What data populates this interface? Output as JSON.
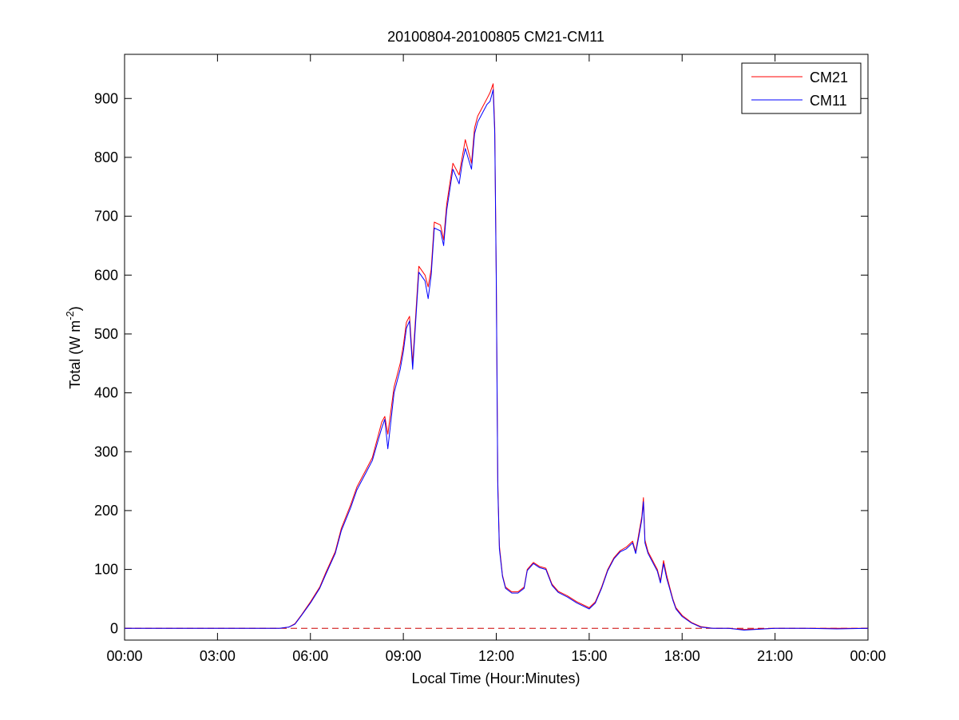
{
  "chart_data": {
    "type": "line",
    "title": "20100804-20100805 CM21-CM11",
    "xlabel": "Local Time (Hour:Minutes)",
    "ylabel": {
      "main": "Total (W m",
      "superscript": "-2",
      "close": ")"
    },
    "xlim": [
      0,
      24
    ],
    "ylim": [
      -20,
      975
    ],
    "x_ticks": [
      {
        "value": 0,
        "label": "00:00"
      },
      {
        "value": 3,
        "label": "03:00"
      },
      {
        "value": 6,
        "label": "06:00"
      },
      {
        "value": 9,
        "label": "09:00"
      },
      {
        "value": 12,
        "label": "12:00"
      },
      {
        "value": 15,
        "label": "15:00"
      },
      {
        "value": 18,
        "label": "18:00"
      },
      {
        "value": 21,
        "label": "21:00"
      },
      {
        "value": 24,
        "label": "00:00"
      }
    ],
    "y_ticks": [
      0,
      100,
      200,
      300,
      400,
      500,
      600,
      700,
      800,
      900
    ],
    "grid": false,
    "legend_position": "top-right",
    "zero_line": {
      "y": 0,
      "color": "#cc0000",
      "style": "dashed"
    },
    "series": [
      {
        "name": "CM21",
        "color": "#ff0000",
        "x": [
          0,
          1,
          2,
          3,
          4,
          5,
          5.3,
          5.5,
          5.7,
          6.0,
          6.3,
          6.5,
          6.8,
          7.0,
          7.3,
          7.5,
          7.8,
          8.0,
          8.2,
          8.3,
          8.4,
          8.5,
          8.7,
          8.9,
          9.0,
          9.1,
          9.2,
          9.3,
          9.5,
          9.7,
          9.8,
          9.9,
          10.0,
          10.2,
          10.3,
          10.4,
          10.6,
          10.8,
          10.9,
          11.0,
          11.2,
          11.3,
          11.4,
          11.5,
          11.7,
          11.8,
          11.9,
          11.95,
          12.0,
          12.05,
          12.1,
          12.2,
          12.3,
          12.5,
          12.7,
          12.9,
          13.0,
          13.2,
          13.4,
          13.6,
          13.8,
          14.0,
          14.3,
          14.6,
          15.0,
          15.2,
          15.4,
          15.6,
          15.8,
          16.0,
          16.2,
          16.4,
          16.5,
          16.6,
          16.7,
          16.75,
          16.8,
          16.9,
          17.0,
          17.1,
          17.2,
          17.3,
          17.4,
          17.5,
          17.6,
          17.7,
          17.8,
          18.0,
          18.3,
          18.6,
          19.0,
          19.5,
          20.0,
          21.0,
          22.0,
          23.0,
          24.0
        ],
        "values": [
          0,
          0,
          0,
          0,
          0,
          0,
          2,
          8,
          22,
          45,
          70,
          95,
          130,
          170,
          210,
          240,
          270,
          290,
          330,
          350,
          360,
          330,
          410,
          450,
          480,
          520,
          530,
          450,
          615,
          600,
          580,
          610,
          690,
          685,
          660,
          720,
          790,
          770,
          800,
          830,
          790,
          850,
          870,
          880,
          900,
          910,
          925,
          850,
          600,
          250,
          140,
          90,
          70,
          62,
          62,
          70,
          100,
          112,
          105,
          102,
          75,
          63,
          55,
          45,
          35,
          45,
          70,
          100,
          120,
          132,
          138,
          148,
          130,
          160,
          190,
          222,
          150,
          130,
          120,
          110,
          100,
          80,
          115,
          90,
          70,
          50,
          35,
          22,
          10,
          3,
          0,
          0,
          -2,
          0,
          0,
          0,
          0
        ]
      },
      {
        "name": "CM11",
        "color": "#0000ff",
        "x": [
          0,
          1,
          2,
          3,
          4,
          5,
          5.3,
          5.5,
          5.7,
          6.0,
          6.3,
          6.5,
          6.8,
          7.0,
          7.3,
          7.5,
          7.8,
          8.0,
          8.2,
          8.3,
          8.4,
          8.5,
          8.7,
          8.9,
          9.0,
          9.1,
          9.2,
          9.3,
          9.5,
          9.7,
          9.8,
          9.9,
          10.0,
          10.2,
          10.3,
          10.4,
          10.6,
          10.8,
          10.9,
          11.0,
          11.2,
          11.3,
          11.4,
          11.5,
          11.7,
          11.8,
          11.9,
          11.95,
          12.0,
          12.05,
          12.1,
          12.2,
          12.3,
          12.5,
          12.7,
          12.9,
          13.0,
          13.2,
          13.4,
          13.6,
          13.8,
          14.0,
          14.3,
          14.6,
          15.0,
          15.2,
          15.4,
          15.6,
          15.8,
          16.0,
          16.2,
          16.4,
          16.5,
          16.6,
          16.7,
          16.75,
          16.8,
          16.9,
          17.0,
          17.1,
          17.2,
          17.3,
          17.4,
          17.5,
          17.6,
          17.7,
          17.8,
          18.0,
          18.3,
          18.6,
          19.0,
          19.5,
          20.0,
          21.0,
          22.0,
          23.0,
          24.0
        ],
        "values": [
          0,
          0,
          0,
          0,
          0,
          0,
          2,
          7,
          21,
          43,
          68,
          92,
          127,
          166,
          205,
          235,
          265,
          285,
          322,
          340,
          355,
          305,
          400,
          440,
          470,
          510,
          522,
          440,
          605,
          590,
          560,
          600,
          680,
          675,
          650,
          710,
          780,
          755,
          790,
          815,
          780,
          840,
          860,
          870,
          890,
          895,
          915,
          840,
          590,
          240,
          135,
          88,
          68,
          60,
          60,
          68,
          98,
          110,
          103,
          100,
          73,
          61,
          53,
          43,
          33,
          43,
          68,
          98,
          118,
          130,
          135,
          145,
          127,
          155,
          185,
          215,
          145,
          127,
          117,
          107,
          97,
          77,
          110,
          85,
          67,
          48,
          33,
          20,
          9,
          2,
          0,
          0,
          -3,
          0,
          0,
          -1,
          0
        ]
      }
    ]
  }
}
